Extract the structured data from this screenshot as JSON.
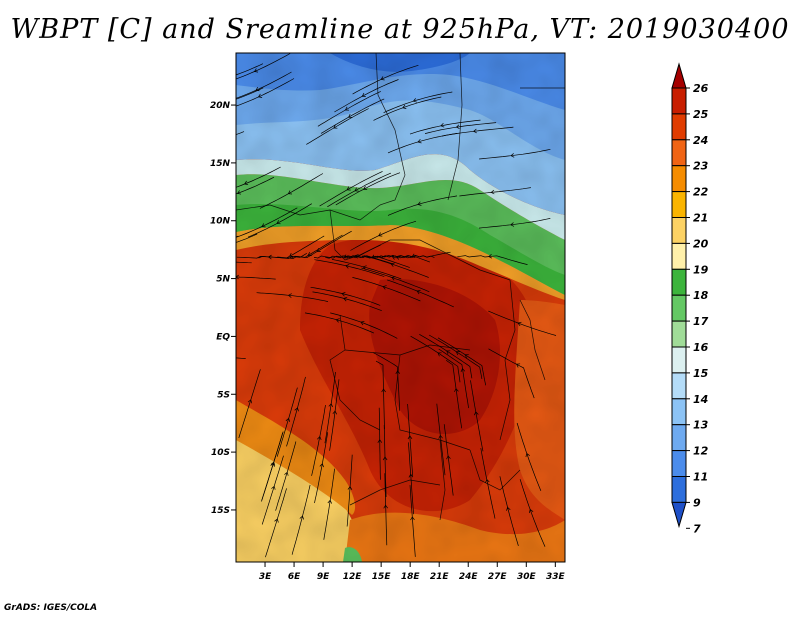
{
  "title": "WBPT [C] and Sreamline at 925hPa, VT: 2019030400",
  "footer": "GrADS: IGES/COLA",
  "map": {
    "lat_labels": [
      "20N",
      "15N",
      "10N",
      "5N",
      "EQ",
      "5S",
      "10S",
      "15S"
    ],
    "lon_labels": [
      "3E",
      "6E",
      "9E",
      "12E",
      "15E",
      "18E",
      "21E",
      "24E",
      "27E",
      "30E",
      "33E"
    ],
    "lat_range": [
      -19.5,
      24.5
    ],
    "lon_range": [
      0,
      34
    ],
    "lat_ticks": [
      20,
      15,
      10,
      5,
      0,
      -5,
      -10,
      -15
    ],
    "lon_ticks": [
      3,
      6,
      9,
      12,
      15,
      18,
      21,
      24,
      27,
      30,
      33
    ]
  },
  "colorbar": {
    "labels": [
      "26",
      "25",
      "24",
      "23",
      "22",
      "21",
      "20",
      "19",
      "18",
      "17",
      "16",
      "15",
      "14",
      "13",
      "12",
      "11",
      "9",
      "7"
    ],
    "colors": [
      "#a50000",
      "#c81e00",
      "#e03c00",
      "#f06414",
      "#f58c00",
      "#fab400",
      "#fcd264",
      "#fff0aa",
      "#3cb43c",
      "#64c864",
      "#a0dc98",
      "#dcf0f0",
      "#b4dcf8",
      "#8cc3f5",
      "#6eaaf0",
      "#4b8ceb",
      "#2d6edc",
      "#1e50c8"
    ]
  }
}
